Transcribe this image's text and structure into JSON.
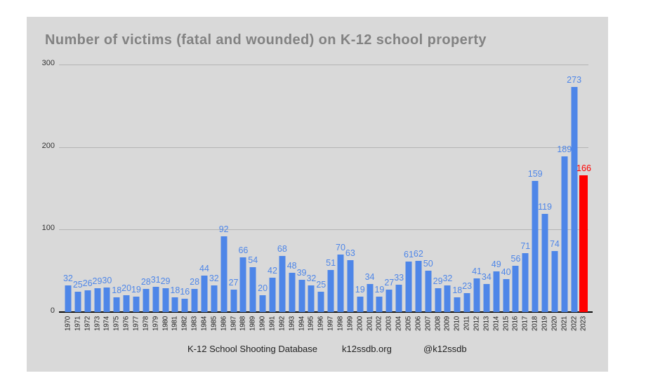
{
  "title": "Number of victims (fatal and wounded) on K-12 school property",
  "footer": {
    "source": "K-12 School Shooting Database",
    "website": "k12ssdb.org",
    "handle": "@k12ssdb"
  },
  "colors": {
    "page_bg": "#ffffff",
    "panel_bg": "#d9d9d9",
    "bar": "#4e86e8",
    "bar_highlight": "#ff0000",
    "value_label": "#4e86e8",
    "value_label_highlight": "#ff0000",
    "gridline": "#b4b4b4",
    "axis": "#0a0a0a",
    "title_color": "#828282",
    "tick_label": "#333333",
    "footer_text": "#1f1f1f"
  },
  "chart_data": {
    "type": "bar",
    "title": "Number of victims (fatal and wounded) on K-12 school property",
    "categories": [
      "1970",
      "1971",
      "1972",
      "1973",
      "1974",
      "1975",
      "1976",
      "1977",
      "1978",
      "1979",
      "1980",
      "1981",
      "1982",
      "1983",
      "1984",
      "1985",
      "1986",
      "1987",
      "1988",
      "1989",
      "1990",
      "1991",
      "1992",
      "1993",
      "1994",
      "1995",
      "1996",
      "1997",
      "1998",
      "1999",
      "2000",
      "2001",
      "2002",
      "2003",
      "2004",
      "2005",
      "2006",
      "2007",
      "2008",
      "2009",
      "2010",
      "2011",
      "2012",
      "2013",
      "2014",
      "2015",
      "2016",
      "2017",
      "2018",
      "2019",
      "2020",
      "2021",
      "2022",
      "2023"
    ],
    "values": [
      32,
      25,
      26,
      29,
      30,
      18,
      20,
      19,
      28,
      31,
      29,
      18,
      16,
      28,
      44,
      32,
      92,
      27,
      66,
      54,
      20,
      42,
      68,
      48,
      39,
      32,
      25,
      51,
      70,
      63,
      19,
      34,
      19,
      27,
      33,
      61,
      62,
      50,
      29,
      32,
      18,
      23,
      41,
      34,
      49,
      40,
      56,
      71,
      159,
      119,
      74,
      189,
      273,
      166
    ],
    "highlight_category": "2023",
    "highlight_note": "2023 bar and its value label are red; all other bars blue",
    "xlabel": "",
    "ylabel": "",
    "ylim": [
      0,
      300
    ],
    "yticks": [
      0,
      100,
      200,
      300
    ],
    "grid": true,
    "legend": false,
    "annotations": [
      "numeric value label above every bar"
    ]
  }
}
